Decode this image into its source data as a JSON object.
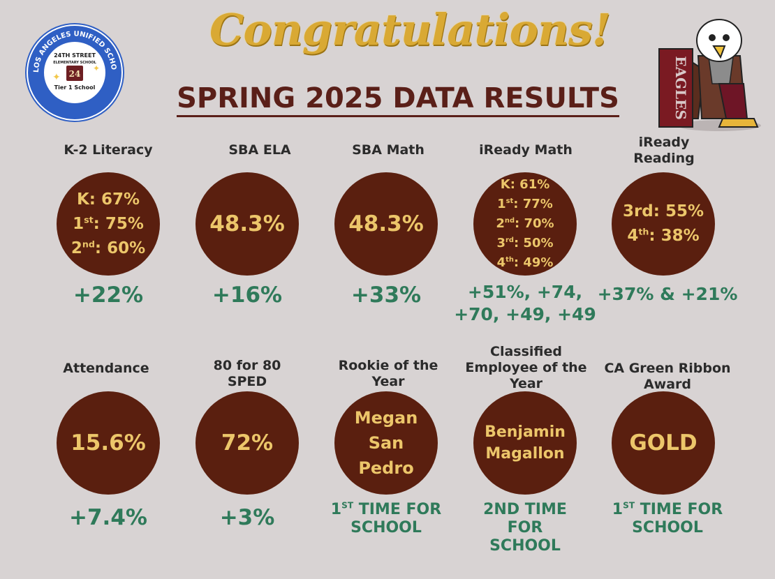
{
  "header": {
    "headline": "Congratulations!",
    "subtitle": "SPRING 2025 DATA RESULTS"
  },
  "seal": {
    "outer_text": "LOS ANGELES UNIFIED SCHOOL DISTRICT",
    "school": "24TH STREET",
    "school_sub": "ELEMENTARY SCHOOL",
    "badge": "Tier 1 School"
  },
  "mascot": {
    "team": "EAGLES"
  },
  "cards_row1": [
    {
      "label": "K-2 Literacy",
      "lines": [
        [
          "K: 67%",
          ""
        ],
        [
          "1",
          "st",
          ": 75%"
        ],
        [
          "2",
          "nd",
          ": 60%"
        ]
      ],
      "delta": "+22%"
    },
    {
      "label": "SBA ELA",
      "value": "48.3%",
      "delta": "+16%"
    },
    {
      "label": "SBA Math",
      "value": "48.3%",
      "delta": "+33%"
    },
    {
      "label": "iReady Math",
      "lines": [
        [
          "K: 61%",
          ""
        ],
        [
          "1",
          "st",
          ": 77%"
        ],
        [
          "2",
          "nd",
          ": 70%"
        ],
        [
          "3",
          "rd",
          ": 50%"
        ],
        [
          "4",
          "th",
          ": 49%"
        ]
      ],
      "delta_lines": [
        "+51%, +74,",
        "+70, +49, +49"
      ]
    },
    {
      "label_lines": [
        "iReady",
        "Reading"
      ],
      "lines": [
        [
          "3rd: 55%",
          ""
        ],
        [
          "4",
          "th",
          ": 38%"
        ]
      ],
      "delta": "+37% &  +21%"
    }
  ],
  "cards_row2": [
    {
      "label": "Attendance",
      "value": "15.6%",
      "delta": "+7.4%"
    },
    {
      "label_lines": [
        "80 for 80",
        "SPED"
      ],
      "value": "72%",
      "delta": "+3%"
    },
    {
      "label_lines": [
        "Rookie of the",
        "Year"
      ],
      "name_lines": [
        "Megan",
        "San",
        "Pedro"
      ],
      "delta_sup": [
        "1",
        "ST",
        " TIME FOR"
      ],
      "delta_line2": "SCHOOL"
    },
    {
      "label_lines": [
        "Classified",
        "Employee of the",
        "Year"
      ],
      "name_lines": [
        "Benjamin",
        "Magallon"
      ],
      "delta_lines": [
        "2ND TIME",
        "FOR",
        "SCHOOL"
      ]
    },
    {
      "label_lines": [
        "CA Green Ribbon",
        "Award"
      ],
      "value": "GOLD",
      "delta_sup": [
        "1",
        "ST",
        " TIME FOR"
      ],
      "delta_line2": "SCHOOL"
    }
  ],
  "colors": {
    "background": "#d8d3d3",
    "circle": "#5a1f0f",
    "circle_text": "#ecc66a",
    "delta": "#2f7a5a",
    "headline": "#d9a934",
    "subtitle": "#5a1f18"
  }
}
